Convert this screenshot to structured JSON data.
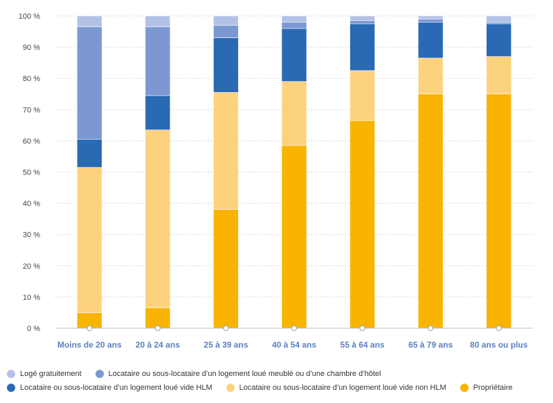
{
  "chart_data": {
    "type": "bar",
    "stacked": true,
    "categories": [
      "Moins de 20 ans",
      "20 à 24 ans",
      "25 à 39 ans",
      "40 à 54 ans",
      "55 à 64 ans",
      "65 à 79 ans",
      "80 ans ou plus"
    ],
    "series": [
      {
        "name": "Propriétaire",
        "color": "#f8b400",
        "values": [
          5,
          6.5,
          38,
          58.5,
          66.5,
          75,
          75
        ]
      },
      {
        "name": "Locataire ou sous-locataire d’un logement loué vide non HLM",
        "color": "#fdd27e",
        "values": [
          46.5,
          57,
          37.5,
          20.5,
          16,
          11.5,
          12
        ]
      },
      {
        "name": "Locataire ou sous-locataire d’un logement loué vide HLM",
        "color": "#2a69b3",
        "values": [
          9,
          11,
          17.5,
          17,
          15,
          11.5,
          10.5
        ]
      },
      {
        "name": "Locataire ou sous-locataire d’un logement loué meublé ou d’une chambre d’hôtel",
        "color": "#7b98d2",
        "values": [
          36,
          22,
          4,
          2,
          1,
          1,
          0.5
        ]
      },
      {
        "name": "Logé gratuitement",
        "color": "#b4c1e6",
        "values": [
          3.5,
          3.5,
          3,
          2,
          1.5,
          1,
          2
        ]
      }
    ],
    "legend": [
      {
        "name": "Logé gratuitement",
        "color": "#b4c1e6"
      },
      {
        "name": "Locataire ou sous-locataire d’un logement loué meublé ou d’une chambre d’hôtel",
        "color": "#7b98d2"
      },
      {
        "name": "Locataire ou sous-locataire d’un logement loué vide HLM",
        "color": "#2a69b3"
      },
      {
        "name": "Locataire ou sous-locataire d’un logement loué vide non HLM",
        "color": "#fdd27e"
      },
      {
        "name": "Propriétaire",
        "color": "#f8b400"
      }
    ],
    "y_ticks": [
      "0 %",
      "10 %",
      "20 %",
      "30 %",
      "40 %",
      "50 %",
      "60 %",
      "70 %",
      "80 %",
      "90 %",
      "100 %"
    ],
    "ylim": [
      0,
      100
    ],
    "grid": true,
    "legend_position": "bottom",
    "title": "",
    "xlabel": "",
    "ylabel": ""
  }
}
